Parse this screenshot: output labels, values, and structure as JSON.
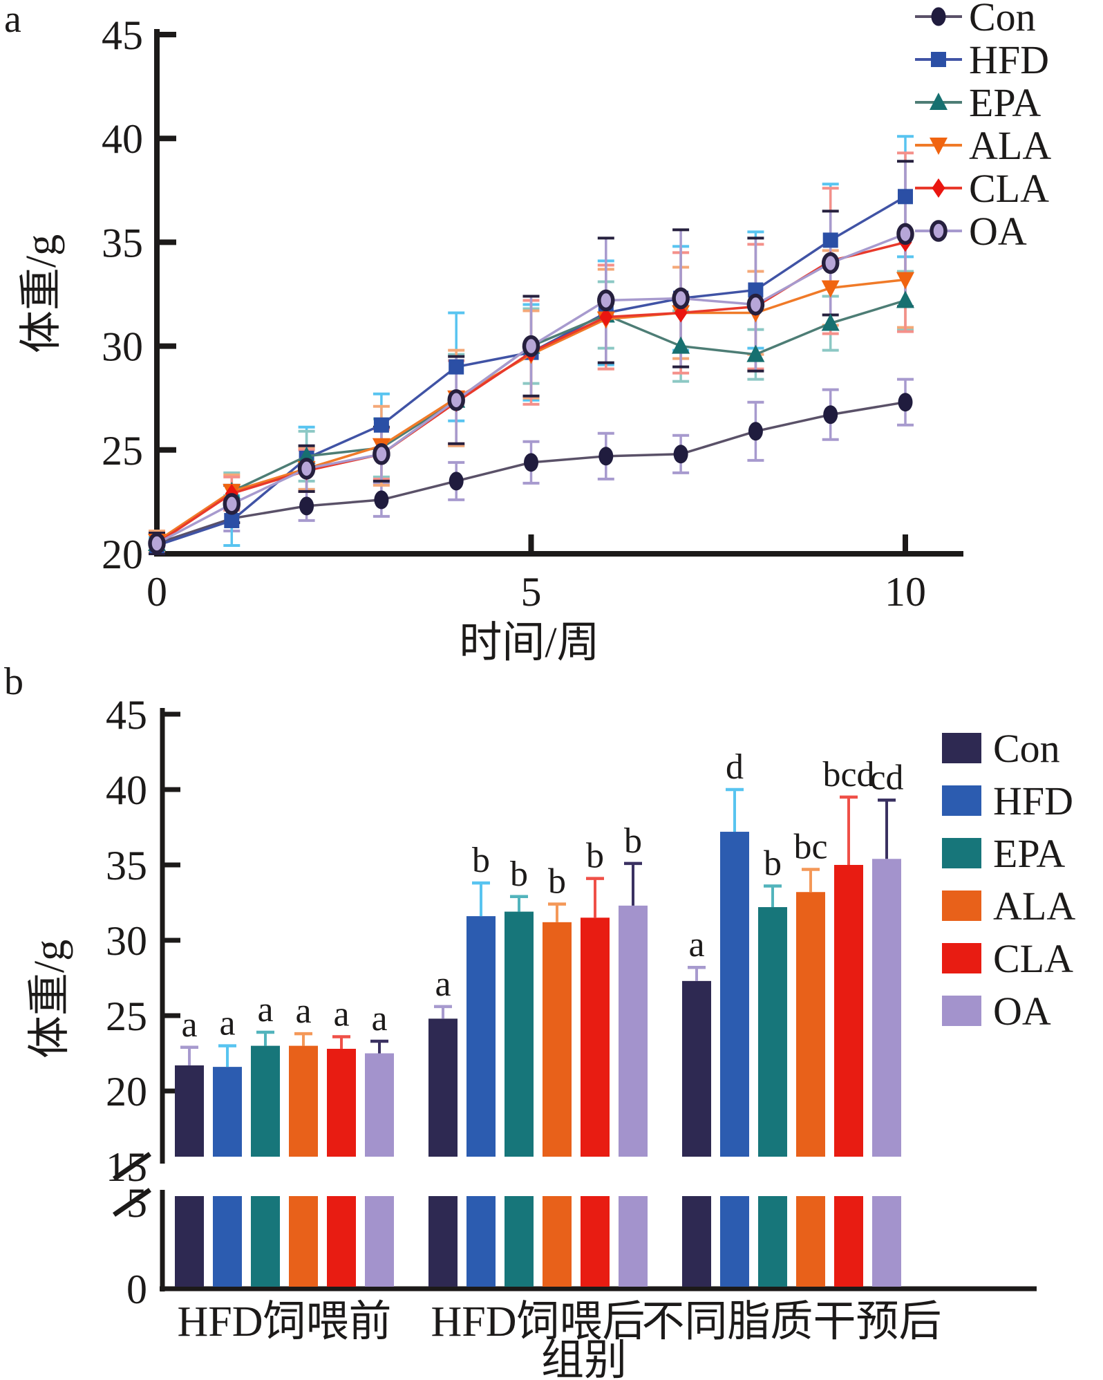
{
  "panels": {
    "a": {
      "label": "a",
      "xlabel": "时间/周",
      "ylabel": "体重/g"
    },
    "b": {
      "label": "b",
      "xlabel": "组别",
      "ylabel": "体重/g"
    }
  },
  "colors": {
    "axis": "#1c1a19",
    "background": "#ffffff"
  },
  "chart_data": [
    {
      "type": "line",
      "panel": "a",
      "title": "",
      "xlabel": "时间/周",
      "ylabel": "体重/g",
      "x": [
        0,
        1,
        2,
        3,
        4,
        5,
        6,
        7,
        8,
        9,
        10
      ],
      "xticks": [
        0,
        5,
        10
      ],
      "yticks": [
        20,
        25,
        30,
        35,
        40,
        45
      ],
      "xlim": [
        0,
        10
      ],
      "ylim": [
        20,
        45
      ],
      "grid": false,
      "legend_position": "top-right",
      "series": [
        {
          "name": "Con",
          "marker": "circle",
          "color": "#5a5168",
          "marker_color": "#201c3e",
          "error_color": "#a79ace",
          "cap_color": "#a79ace",
          "values": [
            20.5,
            21.7,
            22.3,
            22.6,
            23.5,
            24.4,
            24.7,
            24.8,
            25.9,
            26.7,
            27.3
          ],
          "errors": [
            0.5,
            0.6,
            0.7,
            0.8,
            0.9,
            1.0,
            1.1,
            0.9,
            1.4,
            1.2,
            1.1
          ]
        },
        {
          "name": "HFD",
          "marker": "square",
          "color": "#4053a5",
          "marker_color": "#2b4fa5",
          "error_color": "#58c4f0",
          "cap_color": "#58c4f0",
          "values": [
            20.4,
            21.6,
            24.6,
            26.2,
            29.0,
            29.7,
            31.6,
            32.3,
            32.7,
            35.1,
            37.2
          ],
          "errors": [
            0.4,
            1.2,
            1.5,
            1.5,
            2.6,
            2.3,
            2.5,
            2.5,
            2.8,
            2.7,
            2.9
          ]
        },
        {
          "name": "EPA",
          "marker": "triangle-up",
          "color": "#4d7d75",
          "marker_color": "#177070",
          "error_color": "#8cc8c4",
          "cap_color": "#8cc8c4",
          "values": [
            20.5,
            23.0,
            24.7,
            25.1,
            27.4,
            30.0,
            31.5,
            30.0,
            29.6,
            31.1,
            32.2
          ],
          "errors": [
            0.5,
            0.9,
            1.2,
            1.4,
            2.2,
            1.8,
            1.6,
            1.7,
            1.2,
            1.3,
            1.4
          ]
        },
        {
          "name": "ALA",
          "marker": "triangle-down",
          "color": "#f07a28",
          "marker_color": "#f06410",
          "error_color": "#f4a878",
          "cap_color": "#f4a878",
          "values": [
            20.6,
            23.0,
            24.1,
            25.2,
            27.5,
            29.6,
            31.3,
            31.6,
            31.6,
            32.8,
            33.2
          ],
          "errors": [
            0.5,
            0.8,
            1.0,
            1.9,
            2.3,
            2.1,
            2.4,
            2.2,
            2.0,
            1.8,
            2.3
          ]
        },
        {
          "name": "CLA",
          "marker": "diamond",
          "color": "#e8392b",
          "marker_color": "#ea1610",
          "error_color": "#f4908a",
          "cap_color": "#f4908a",
          "values": [
            20.5,
            22.9,
            24.0,
            24.8,
            27.3,
            29.7,
            31.4,
            31.6,
            31.9,
            34.1,
            35.0
          ],
          "errors": [
            0.5,
            0.8,
            1.0,
            1.2,
            2.0,
            2.5,
            2.5,
            2.9,
            3.0,
            3.5,
            4.3
          ]
        },
        {
          "name": "OA",
          "marker": "circle-open",
          "color": "#a79ace",
          "marker_color": "#26203e",
          "marker_fill": "#b7a6d8",
          "error_color": "#a79ace",
          "cap_color": "#26203e",
          "values": [
            20.5,
            22.4,
            24.1,
            24.8,
            27.4,
            30.0,
            32.2,
            32.3,
            32.0,
            34.0,
            35.4
          ],
          "errors": [
            0.5,
            0.9,
            1.1,
            1.3,
            2.1,
            2.4,
            3.0,
            3.3,
            3.2,
            2.5,
            3.5
          ]
        }
      ]
    },
    {
      "type": "bar",
      "panel": "b",
      "title": "",
      "xlabel": "组别",
      "ylabel": "体重/g",
      "categories": [
        "HFD饲喂前",
        "HFD饲喂后",
        "不同脂质干预后"
      ],
      "yticks_upper": [
        15,
        20,
        25,
        30,
        35,
        40,
        45
      ],
      "yticks_lower": [
        0,
        5
      ],
      "axis_break_between": [
        5,
        15
      ],
      "ylim": [
        0,
        45
      ],
      "grid": false,
      "legend_position": "right",
      "series": [
        {
          "name": "Con",
          "color": "#2e2952",
          "error_color": "#a79ace",
          "values": [
            21.7,
            24.8,
            27.3
          ],
          "errors": [
            1.2,
            0.8,
            0.9
          ],
          "letters": [
            "a",
            "a",
            "a"
          ]
        },
        {
          "name": "HFD",
          "color": "#2c5cb0",
          "error_color": "#58c4f0",
          "values": [
            21.6,
            31.6,
            37.2
          ],
          "errors": [
            1.4,
            2.2,
            2.8
          ],
          "letters": [
            "a",
            "b",
            "d"
          ]
        },
        {
          "name": "EPA",
          "color": "#17767a",
          "error_color": "#52b4bc",
          "values": [
            23.0,
            31.9,
            32.2
          ],
          "errors": [
            0.9,
            1.0,
            1.4
          ],
          "letters": [
            "a",
            "b",
            "b"
          ]
        },
        {
          "name": "ALA",
          "color": "#e8611a",
          "error_color": "#f49858",
          "values": [
            23.0,
            31.2,
            33.2
          ],
          "errors": [
            0.8,
            1.2,
            1.5
          ],
          "letters": [
            "a",
            "b",
            "bc"
          ]
        },
        {
          "name": "CLA",
          "color": "#e81c12",
          "error_color": "#ef5048",
          "values": [
            22.8,
            31.5,
            35.0
          ],
          "errors": [
            0.8,
            2.6,
            4.5
          ],
          "letters": [
            "a",
            "b",
            "bcd"
          ]
        },
        {
          "name": "OA",
          "color": "#a393cc",
          "error_color": "#3a3161",
          "values": [
            22.5,
            32.3,
            35.4
          ],
          "errors": [
            0.8,
            2.8,
            3.9
          ],
          "letters": [
            "a",
            "b",
            "cd"
          ]
        }
      ]
    }
  ]
}
